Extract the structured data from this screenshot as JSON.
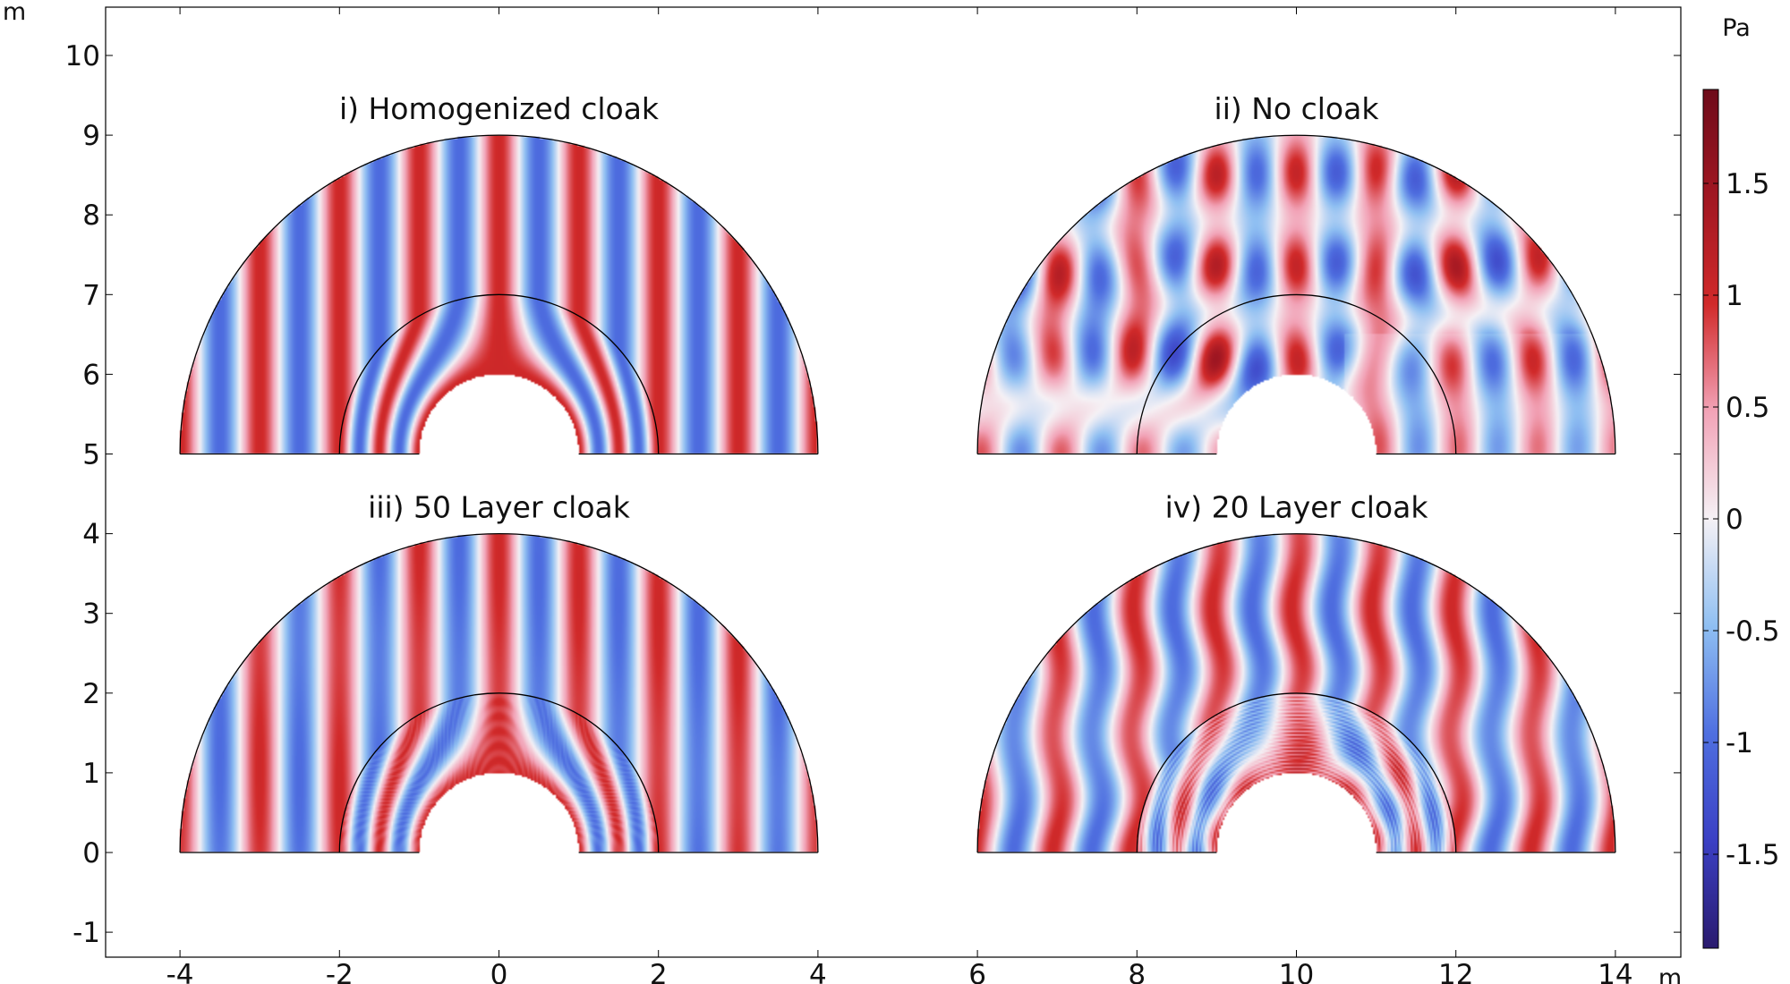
{
  "chart_data": {
    "type": "heatmap",
    "plot": "Acoustic pressure field, four half-annulus cloak domains",
    "x_axis": {
      "unit": "m",
      "range": [
        -4.9,
        14.7
      ],
      "ticks": [
        -4,
        -2,
        0,
        2,
        4,
        6,
        8,
        10,
        12,
        14
      ]
    },
    "y_axis": {
      "unit": "m",
      "range": [
        -1.3,
        10.7
      ],
      "ticks": [
        -1,
        0,
        1,
        2,
        3,
        4,
        5,
        6,
        7,
        8,
        9,
        10
      ]
    },
    "colorbar": {
      "unit": "Pa",
      "range": [
        -1.92,
        1.92
      ],
      "ticks": [
        "1.5",
        "1",
        "0.5",
        "0",
        "-0.5",
        "-1",
        "-1.5"
      ],
      "tick_values": [
        1.5,
        1,
        0.5,
        0,
        -0.5,
        -1,
        -1.5
      ],
      "colormap": [
        "#2a1a6e",
        "#3b40c4",
        "#4f6fe0",
        "#8fbff2",
        "#f5f1f5",
        "#f2a3b7",
        "#d12a2a",
        "#a11722",
        "#6e0b1a"
      ]
    },
    "panels": [
      {
        "title": "i) Homogenized cloak",
        "center": [
          0,
          5
        ],
        "r_obstacle": 1,
        "r_cloak": 2,
        "r_outer": 4,
        "mode": "homogenized"
      },
      {
        "title": "ii) No cloak",
        "center": [
          10,
          5
        ],
        "r_obstacle": 1,
        "r_cloak": 2,
        "r_outer": 4,
        "mode": "none"
      },
      {
        "title": "iii) 50 Layer cloak",
        "center": [
          0,
          0
        ],
        "r_obstacle": 1,
        "r_cloak": 2,
        "r_outer": 4,
        "mode": "layer50"
      },
      {
        "title": "iv) 20 Layer cloak",
        "center": [
          10,
          0
        ],
        "r_obstacle": 1,
        "r_cloak": 2,
        "r_outer": 4,
        "mode": "layer20"
      }
    ],
    "wave": {
      "wavelength_m": 1.0,
      "amplitude_pa": 1.0
    }
  }
}
